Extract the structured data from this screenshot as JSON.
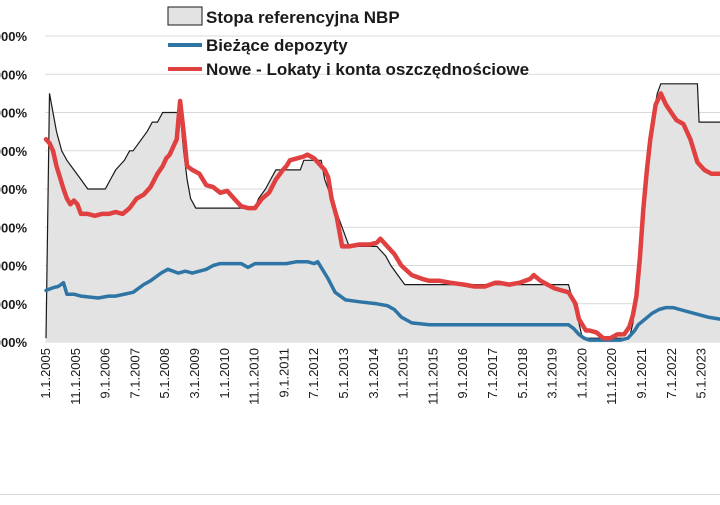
{
  "chart_data": {
    "type": "line",
    "title": "",
    "xlabel": "",
    "ylabel": "",
    "x_tick_labels": [
      "1.1.2005",
      "11.1.2005",
      "9.1.2006",
      "7.1.2007",
      "5.1.2008",
      "3.1.2009",
      "1.1.2010",
      "11.1.2010",
      "9.1.2011",
      "7.1.2012",
      "5.1.2013",
      "3.1.2014",
      "1.1.2015",
      "11.1.2015",
      "9.1.2016",
      "7.1.2017",
      "5.1.2018",
      "3.1.2019",
      "1.1.2020",
      "11.1.2020",
      "9.1.2021",
      "7.1.2022",
      "5.1.2023"
    ],
    "y_tick_labels": [
      "000%",
      "000%",
      "000%",
      "000%",
      "000%",
      "000%",
      "000%",
      "000%",
      "000%"
    ],
    "y_tick_values": [
      0,
      1,
      2,
      3,
      4,
      5,
      6,
      7,
      8
    ],
    "ylim": [
      0,
      8
    ],
    "xlim": [
      2004.97,
      2024.35
    ],
    "grid": "horizontal",
    "legend_position": "top-center",
    "series": [
      {
        "name": "Stopa referencyjna NBP",
        "style": "area",
        "color": "#bfbfbf",
        "fill": "#e3e3e3",
        "x": [
          2005.0,
          2005.1,
          2005.2,
          2005.3,
          2005.45,
          2005.6,
          2005.8,
          2006.0,
          2006.2,
          2006.7,
          2006.85,
          2007.0,
          2007.25,
          2007.4,
          2007.5,
          2007.7,
          2007.9,
          2008.05,
          2008.2,
          2008.35,
          2008.5,
          2008.85,
          2008.95,
          2009.05,
          2009.15,
          2009.3,
          2009.5,
          2010.0,
          2010.5,
          2011.0,
          2011.1,
          2011.3,
          2011.45,
          2011.6,
          2012.3,
          2012.4,
          2012.9,
          2013.0,
          2013.1,
          2013.2,
          2013.3,
          2013.4,
          2013.5,
          2013.6,
          2013.7,
          2014.5,
          2014.75,
          2014.9,
          2015.1,
          2015.3,
          2016.0,
          2017.0,
          2018.0,
          2019.0,
          2020.0,
          2020.15,
          2020.3,
          2020.4,
          2020.45,
          2020.7,
          2021.0,
          2021.5,
          2021.75,
          2021.85,
          2021.95,
          2022.05,
          2022.15,
          2022.25,
          2022.35,
          2022.45,
          2022.55,
          2022.65,
          2022.75,
          2023.0,
          2023.5,
          2023.7,
          2023.75,
          2024.0,
          2024.35
        ],
        "values": [
          0.1,
          6.5,
          6.0,
          5.5,
          5.0,
          4.75,
          4.5,
          4.25,
          4.0,
          4.0,
          4.25,
          4.5,
          4.75,
          5.0,
          5.0,
          5.25,
          5.5,
          5.75,
          5.75,
          6.0,
          6.0,
          6.0,
          5.0,
          4.25,
          3.75,
          3.5,
          3.5,
          3.5,
          3.5,
          3.5,
          3.75,
          4.0,
          4.25,
          4.5,
          4.5,
          4.75,
          4.75,
          4.25,
          4.0,
          3.75,
          3.5,
          3.25,
          3.0,
          2.75,
          2.5,
          2.5,
          2.25,
          2.0,
          1.75,
          1.5,
          1.5,
          1.5,
          1.5,
          1.5,
          1.5,
          1.0,
          0.5,
          0.1,
          0.1,
          0.1,
          0.1,
          0.1,
          0.1,
          0.5,
          1.25,
          2.5,
          3.75,
          4.5,
          5.25,
          6.0,
          6.5,
          6.75,
          6.75,
          6.75,
          6.75,
          6.75,
          5.75,
          5.75,
          5.75
        ]
      },
      {
        "name": "Bieżące depozyty",
        "style": "line",
        "color": "#2e75a6",
        "x": [
          2005.0,
          2005.2,
          2005.35,
          2005.5,
          2005.6,
          2005.8,
          2006.0,
          2006.5,
          2006.8,
          2007.0,
          2007.5,
          2007.8,
          2008.0,
          2008.3,
          2008.5,
          2008.8,
          2009.0,
          2009.2,
          2009.4,
          2009.6,
          2009.8,
          2010.0,
          2010.3,
          2010.6,
          2010.8,
          2011.0,
          2011.3,
          2011.6,
          2011.9,
          2012.2,
          2012.5,
          2012.7,
          2012.8,
          2012.9,
          2013.1,
          2013.3,
          2013.6,
          2014.0,
          2014.5,
          2014.8,
          2015.0,
          2015.2,
          2015.5,
          2016.0,
          2017.0,
          2018.0,
          2019.0,
          2019.5,
          2020.0,
          2020.15,
          2020.3,
          2020.45,
          2020.6,
          2021.0,
          2021.3,
          2021.5,
          2021.7,
          2021.8,
          2021.9,
          2022.0,
          2022.2,
          2022.4,
          2022.6,
          2022.8,
          2023.0,
          2023.2,
          2023.4,
          2023.6,
          2023.8,
          2024.0,
          2024.35
        ],
        "values": [
          1.35,
          1.42,
          1.45,
          1.55,
          1.25,
          1.25,
          1.2,
          1.15,
          1.2,
          1.2,
          1.3,
          1.5,
          1.6,
          1.8,
          1.9,
          1.8,
          1.85,
          1.8,
          1.85,
          1.9,
          2.0,
          2.05,
          2.05,
          2.05,
          1.95,
          2.05,
          2.05,
          2.05,
          2.05,
          2.1,
          2.1,
          2.05,
          2.1,
          1.95,
          1.65,
          1.3,
          1.1,
          1.05,
          1.0,
          0.95,
          0.85,
          0.65,
          0.5,
          0.45,
          0.45,
          0.45,
          0.45,
          0.45,
          0.45,
          0.35,
          0.2,
          0.1,
          0.05,
          0.05,
          0.05,
          0.05,
          0.1,
          0.2,
          0.3,
          0.45,
          0.6,
          0.75,
          0.85,
          0.9,
          0.9,
          0.85,
          0.8,
          0.75,
          0.7,
          0.65,
          0.6
        ]
      },
      {
        "name": "Nowe - Lokaty i konta oszczędnościowe",
        "style": "line",
        "color": "#e04040",
        "x": [
          2005.0,
          2005.1,
          2005.2,
          2005.3,
          2005.4,
          2005.5,
          2005.6,
          2005.7,
          2005.8,
          2005.9,
          2006.0,
          2006.2,
          2006.4,
          2006.6,
          2006.8,
          2007.0,
          2007.2,
          2007.4,
          2007.6,
          2007.8,
          2008.0,
          2008.2,
          2008.35,
          2008.45,
          2008.55,
          2008.65,
          2008.75,
          2008.85,
          2008.95,
          2009.05,
          2009.2,
          2009.4,
          2009.6,
          2009.8,
          2010.0,
          2010.2,
          2010.4,
          2010.6,
          2010.8,
          2011.0,
          2011.2,
          2011.4,
          2011.6,
          2011.8,
          2011.9,
          2012.0,
          2012.2,
          2012.4,
          2012.5,
          2012.7,
          2012.9,
          2013.0,
          2013.1,
          2013.2,
          2013.35,
          2013.5,
          2013.7,
          2014.0,
          2014.3,
          2014.5,
          2014.6,
          2014.75,
          2015.0,
          2015.2,
          2015.5,
          2015.8,
          2016.0,
          2016.3,
          2016.6,
          2017.0,
          2017.3,
          2017.6,
          2017.9,
          2018.0,
          2018.3,
          2018.6,
          2018.9,
          2019.0,
          2019.2,
          2019.4,
          2019.6,
          2019.8,
          2020.0,
          2020.1,
          2020.2,
          2020.3,
          2020.4,
          2020.5,
          2020.6,
          2020.8,
          2021.0,
          2021.2,
          2021.4,
          2021.6,
          2021.75,
          2021.85,
          2021.95,
          2022.05,
          2022.15,
          2022.25,
          2022.35,
          2022.5,
          2022.65,
          2022.8,
          2022.95,
          2023.1,
          2023.3,
          2023.5,
          2023.7,
          2023.9,
          2024.1,
          2024.35
        ],
        "values": [
          5.3,
          5.2,
          5.0,
          4.6,
          4.3,
          4.0,
          3.75,
          3.6,
          3.7,
          3.6,
          3.35,
          3.35,
          3.3,
          3.35,
          3.35,
          3.4,
          3.35,
          3.5,
          3.75,
          3.85,
          4.05,
          4.4,
          4.6,
          4.8,
          4.9,
          5.1,
          5.3,
          6.3,
          5.5,
          4.6,
          4.5,
          4.4,
          4.1,
          4.05,
          3.9,
          3.95,
          3.75,
          3.55,
          3.5,
          3.5,
          3.75,
          3.9,
          4.25,
          4.5,
          4.6,
          4.75,
          4.8,
          4.85,
          4.9,
          4.8,
          4.6,
          4.5,
          4.3,
          3.75,
          3.25,
          2.5,
          2.5,
          2.55,
          2.55,
          2.6,
          2.7,
          2.55,
          2.3,
          2.0,
          1.75,
          1.65,
          1.6,
          1.6,
          1.55,
          1.5,
          1.45,
          1.45,
          1.55,
          1.55,
          1.5,
          1.55,
          1.65,
          1.75,
          1.6,
          1.5,
          1.4,
          1.35,
          1.3,
          1.15,
          1.0,
          0.6,
          0.45,
          0.3,
          0.3,
          0.25,
          0.1,
          0.1,
          0.2,
          0.2,
          0.4,
          0.7,
          1.2,
          2.2,
          3.5,
          4.5,
          5.3,
          6.2,
          6.5,
          6.2,
          6.0,
          5.8,
          5.7,
          5.3,
          4.7,
          4.5,
          4.4,
          4.4
        ]
      }
    ]
  }
}
